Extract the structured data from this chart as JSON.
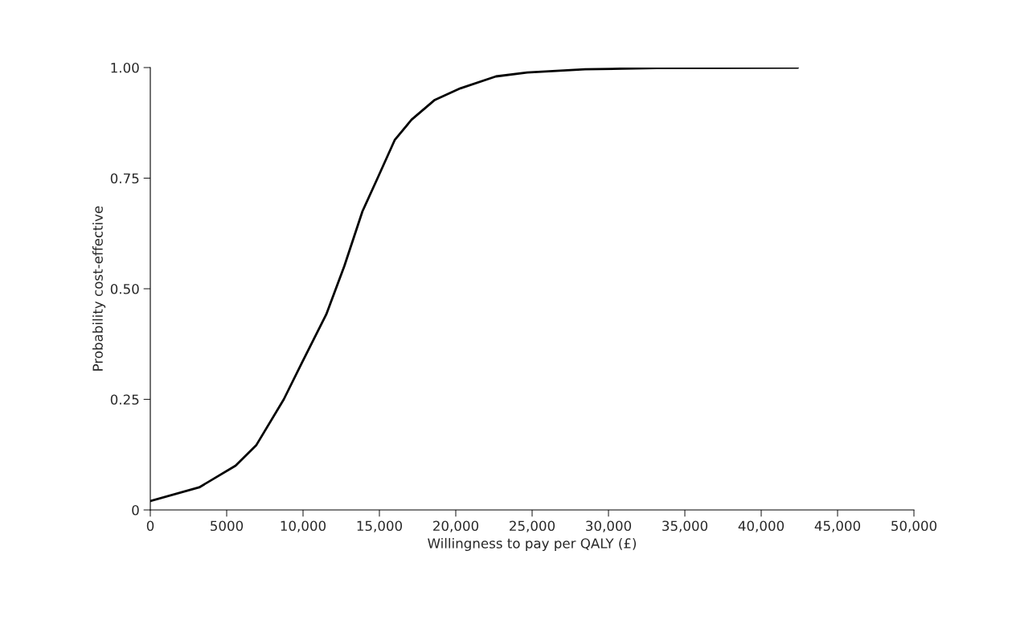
{
  "chart_data": {
    "type": "line",
    "xlabel": "Willingness to pay per QALY (£)",
    "ylabel": "Probability cost-effective",
    "x": [
      0,
      3200,
      5580,
      6950,
      8740,
      9930,
      11520,
      12700,
      13890,
      14880,
      16000,
      17100,
      18630,
      20300,
      22630,
      24680,
      28470,
      33160,
      42400
    ],
    "series": [
      {
        "color": "#000000",
        "values": [
          0.02,
          0.051,
          0.1,
          0.147,
          0.25,
          0.333,
          0.442,
          0.551,
          0.675,
          0.75,
          0.836,
          0.882,
          0.927,
          0.953,
          0.98,
          0.989,
          0.996,
          0.999,
          1.0
        ]
      }
    ],
    "xlim": [
      0,
      50000
    ],
    "ylim": [
      0,
      1
    ],
    "xticks": [
      0,
      5000,
      {
        "value": 10000,
        "label": "10,000"
      },
      {
        "value": 15000,
        "label": "15,000"
      },
      {
        "value": 20000,
        "label": "20,000"
      },
      {
        "value": 25000,
        "label": "25,000"
      },
      {
        "value": 30000,
        "label": "30,000"
      },
      {
        "value": 35000,
        "label": "35,000"
      },
      {
        "value": 40000,
        "label": "40,000"
      },
      {
        "value": 45000,
        "label": "45,000"
      },
      {
        "value": 50000,
        "label": "50,000"
      }
    ],
    "yticks": [
      0,
      {
        "value": 0.25,
        "label": "0.25"
      },
      {
        "value": 0.5,
        "label": "0.50"
      },
      {
        "value": 0.75,
        "label": "0.75"
      },
      {
        "value": 1,
        "label": "1.00"
      }
    ],
    "grid": false,
    "marker": "none",
    "line_style": "solid"
  }
}
